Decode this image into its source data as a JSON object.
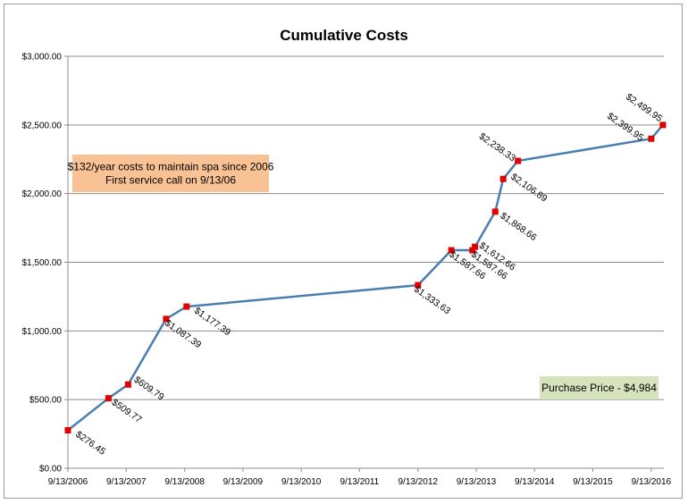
{
  "chart_data": {
    "type": "line",
    "title": "Cumulative Costs",
    "xlabel": "",
    "ylabel": "",
    "x_ticks": [
      "9/13/2006",
      "9/13/2007",
      "9/13/2008",
      "9/13/2009",
      "9/13/2010",
      "9/13/2011",
      "9/13/2012",
      "9/13/2013",
      "9/13/2014",
      "9/13/2015",
      "9/13/2016"
    ],
    "y_ticks": [
      "$0.00",
      "$500.00",
      "$1,000.00",
      "$1,500.00",
      "$2,000.00",
      "$2,500.00",
      "$3,000.00"
    ],
    "ylim": [
      0,
      3000
    ],
    "xlim": [
      "2006-09-13",
      "2016-12-01"
    ],
    "grid": true,
    "line_color": "#4a7eb0",
    "marker_color": "#e00000",
    "series": [
      {
        "points": [
          {
            "x": "2006-09-13",
            "y": 276.45,
            "label": "$276.45"
          },
          {
            "x": "2007-05-25",
            "y": 509.77,
            "label": "$509.77"
          },
          {
            "x": "2007-09-25",
            "y": 609.79,
            "label": "$609.79"
          },
          {
            "x": "2008-05-20",
            "y": 1087.39,
            "label": "$1,087.39"
          },
          {
            "x": "2008-09-25",
            "y": 1177.39,
            "label": "$1,177.39"
          },
          {
            "x": "2012-09-13",
            "y": 1333.63,
            "label": "$1,333.63"
          },
          {
            "x": "2013-04-10",
            "y": 1587.66,
            "label": "$1,587.66"
          },
          {
            "x": "2013-08-20",
            "y": 1587.66,
            "label": "$1,587.66"
          },
          {
            "x": "2013-09-05",
            "y": 1612.66,
            "label": "$1,612.66"
          },
          {
            "x": "2014-01-10",
            "y": 1868.66,
            "label": "$1,868.66"
          },
          {
            "x": "2014-03-01",
            "y": 2106.89,
            "label": "$2,106.89"
          },
          {
            "x": "2014-06-01",
            "y": 2238.33,
            "label": "$2,238.33"
          },
          {
            "x": "2016-09-13",
            "y": 2399.95,
            "label": "$2,399.95"
          },
          {
            "x": "2016-11-25",
            "y": 2499.95,
            "label": "$2,499.95"
          }
        ]
      }
    ],
    "annotations": [
      {
        "lines": [
          "$132/year costs to maintain spa since 2006",
          "First service call on 9/13/06"
        ],
        "fill": "#f9c294"
      },
      {
        "lines": [
          "Purchase Price - $4,984"
        ],
        "fill": "#d6e3bc"
      }
    ]
  }
}
